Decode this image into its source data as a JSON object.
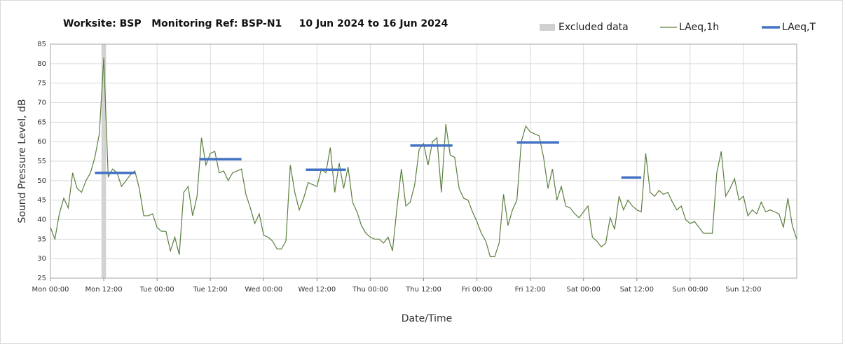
{
  "chart_data": {
    "type": "line",
    "title": "Worksite: BSP   Monitoring Ref: BSP-N1     10 Jun 2024 to 16 Jun 2024",
    "x_label": "Date/Time",
    "y_label": "Sound Pressure Level, dB",
    "xlim": [
      0,
      168
    ],
    "ylim": [
      25,
      85
    ],
    "yticks": [
      25,
      30,
      35,
      40,
      45,
      50,
      55,
      60,
      65,
      70,
      75,
      80,
      85
    ],
    "xticks": [
      {
        "value": 0,
        "label": "Mon 00:00"
      },
      {
        "value": 12,
        "label": "Mon 12:00"
      },
      {
        "value": 24,
        "label": "Tue 00:00"
      },
      {
        "value": 36,
        "label": "Tue 12:00"
      },
      {
        "value": 48,
        "label": "Wed 00:00"
      },
      {
        "value": 60,
        "label": "Wed 12:00"
      },
      {
        "value": 72,
        "label": "Thu 00:00"
      },
      {
        "value": 84,
        "label": "Thu 12:00"
      },
      {
        "value": 96,
        "label": "Fri 00:00"
      },
      {
        "value": 108,
        "label": "Fri 12:00"
      },
      {
        "value": 120,
        "label": "Sat 00:00"
      },
      {
        "value": 132,
        "label": "Sat 12:00"
      },
      {
        "value": 144,
        "label": "Sun 00:00"
      },
      {
        "value": 156,
        "label": "Sun 12:00"
      }
    ],
    "grid": true,
    "excluded": {
      "name": "Excluded data",
      "color": "#d0d0d0",
      "ranges": [
        {
          "start": 11.5,
          "end": 12.5
        }
      ]
    },
    "series": [
      {
        "name": "LAeq,1h",
        "color": "#5b7f3f",
        "x": [
          0,
          1,
          2,
          3,
          4,
          5,
          6,
          7,
          8,
          9,
          10,
          11,
          12,
          13,
          14,
          15,
          16,
          17,
          18,
          19,
          20,
          21,
          22,
          23,
          24,
          25,
          26,
          27,
          28,
          29,
          30,
          31,
          32,
          33,
          34,
          35,
          36,
          37,
          38,
          39,
          40,
          41,
          42,
          43,
          44,
          45,
          46,
          47,
          48,
          49,
          50,
          51,
          52,
          53,
          54,
          55,
          56,
          57,
          58,
          59,
          60,
          61,
          62,
          63,
          64,
          65,
          66,
          67,
          68,
          69,
          70,
          71,
          72,
          73,
          74,
          75,
          76,
          77,
          78,
          79,
          80,
          81,
          82,
          83,
          84,
          85,
          86,
          87,
          88,
          89,
          90,
          91,
          92,
          93,
          94,
          95,
          96,
          97,
          98,
          99,
          100,
          101,
          102,
          103,
          104,
          105,
          106,
          107,
          108,
          109,
          110,
          111,
          112,
          113,
          114,
          115,
          116,
          117,
          118,
          119,
          120,
          121,
          122,
          123,
          124,
          125,
          126,
          127,
          128,
          129,
          130,
          131,
          132,
          133,
          134,
          135,
          136,
          137,
          138,
          139,
          140,
          141,
          142,
          143,
          144,
          145,
          146,
          147,
          148,
          149,
          150,
          151,
          152,
          153,
          154,
          155,
          156,
          157,
          158,
          159,
          160,
          161,
          162,
          163,
          164,
          165,
          166,
          167,
          168
        ],
        "values": [
          38,
          35,
          41.5,
          45.5,
          43,
          52,
          48,
          47,
          50,
          52,
          56,
          62,
          81.5,
          51,
          53,
          52,
          48.5,
          50,
          51.5,
          52.5,
          48,
          41,
          41,
          41.5,
          38,
          37,
          37,
          32,
          35.5,
          31,
          47,
          48.5,
          41,
          46,
          61,
          54,
          57,
          57.5,
          52,
          52.5,
          50,
          52,
          52.5,
          53,
          46.5,
          43,
          39,
          41.5,
          36,
          35.5,
          34.5,
          32.5,
          32.5,
          34.5,
          54,
          47,
          42.5,
          45.5,
          49.5,
          49,
          48.5,
          53,
          52,
          58.5,
          47,
          54.5,
          48,
          53.5,
          44.5,
          42,
          38.5,
          36.5,
          35.5,
          35,
          35,
          34,
          35.5,
          32,
          43,
          53,
          43.5,
          44.5,
          49,
          58,
          59.5,
          54,
          60,
          61,
          47,
          64.5,
          56.5,
          56,
          48,
          45.5,
          45,
          42,
          39.5,
          36.5,
          34.5,
          30.5,
          30.5,
          34,
          46.5,
          38.5,
          42.5,
          45,
          60,
          64,
          62.5,
          62,
          61.5,
          56,
          48,
          53,
          45,
          48.5,
          43.5,
          43,
          41.5,
          40.5,
          42,
          43.5,
          35.5,
          34.5,
          33,
          34,
          40.5,
          37.5,
          46,
          42.5,
          45,
          43.5,
          42.5,
          42,
          57,
          47,
          46,
          47.5,
          46.5,
          47,
          44.5,
          42.5,
          43.5,
          40,
          39,
          39.5,
          38,
          36.5,
          36.5,
          36.5,
          52,
          57.5,
          46,
          48,
          50.5,
          45,
          46,
          41,
          42.5,
          41.5,
          44.5,
          42,
          42.5,
          42,
          41.5,
          38,
          45.5,
          38.5,
          35
        ]
      }
    ],
    "intervals": {
      "name": "LAeq,T",
      "color": "#4472c4",
      "segments": [
        {
          "start": 10,
          "end": 19,
          "value": 52
        },
        {
          "start": 33.5,
          "end": 43,
          "value": 55.5
        },
        {
          "start": 57.5,
          "end": 66.5,
          "value": 52.8
        },
        {
          "start": 81,
          "end": 90.5,
          "value": 59
        },
        {
          "start": 105,
          "end": 114.5,
          "value": 59.8
        },
        {
          "start": 128.5,
          "end": 133,
          "value": 50.8
        }
      ]
    }
  }
}
